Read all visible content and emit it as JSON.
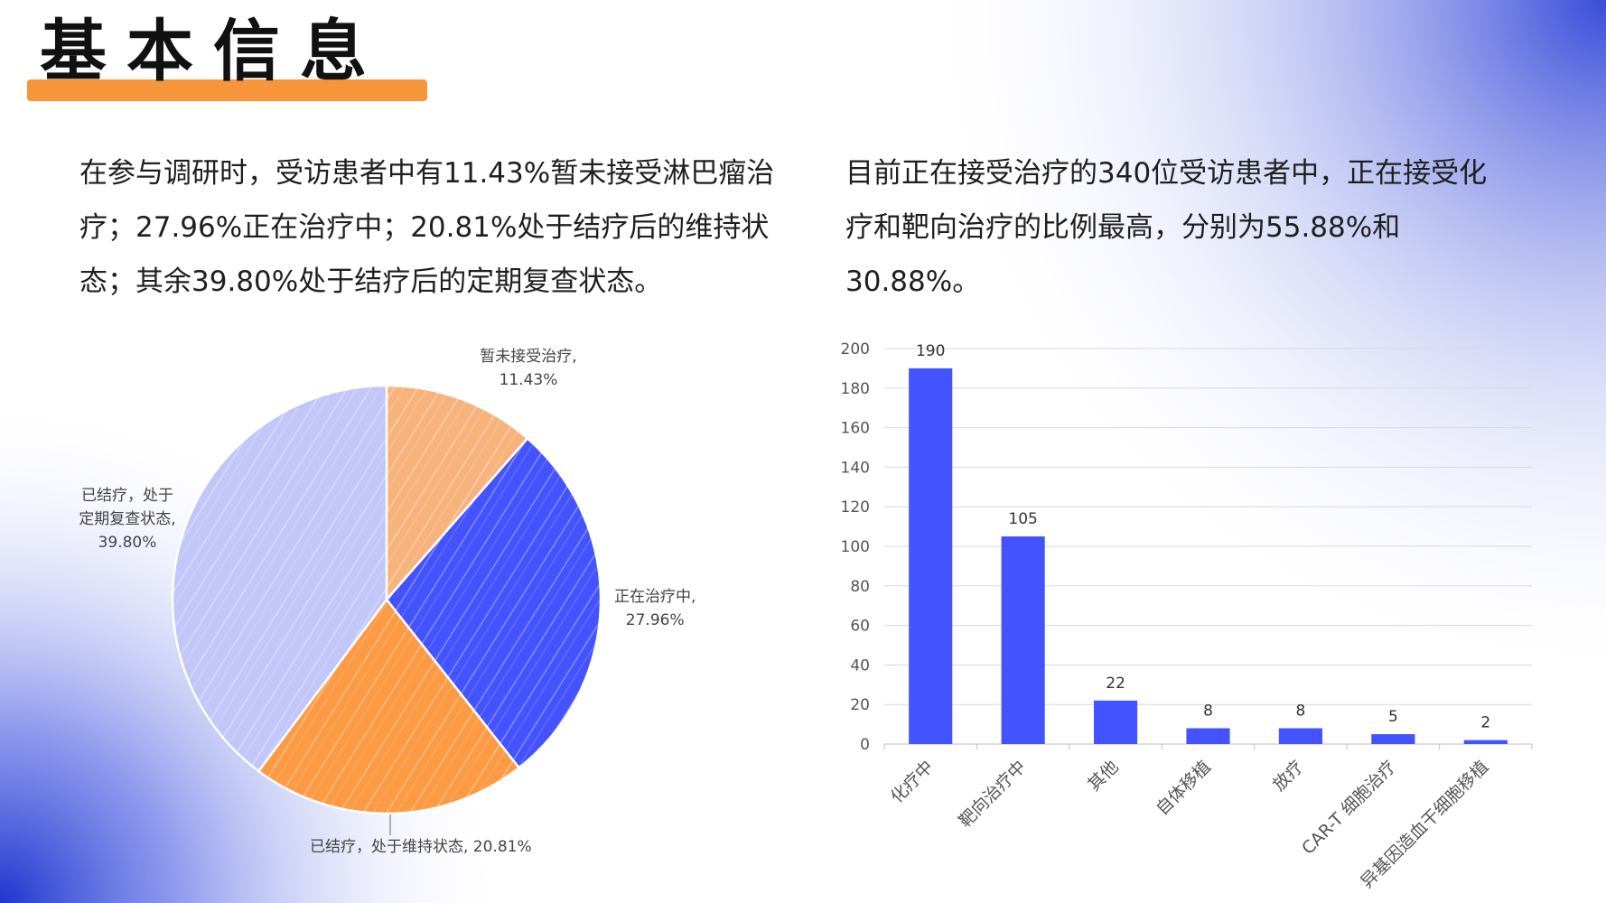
{
  "page": {
    "title": "基本信息",
    "paragraph_left": "在参与调研时，受访患者中有11.43%暂未接受淋巴瘤治疗；27.96%正在治疗中；20.81%处于结疗后的维持状态；其余39.80%处于结疗后的定期复查状态。",
    "paragraph_right": "目前正在接受治疗的340位受访患者中，正在接受化疗和靶向治疗的比例最高，分别为55.88%和30.88%。",
    "accent_color": "#f7953b",
    "brand_blue": "#4353ff"
  },
  "chart_data": [
    {
      "type": "pie",
      "slices": [
        {
          "label": "暂未接受治疗",
          "value": 11.43,
          "display": "11.43%",
          "color": "#f7b37c",
          "label_lines": [
            "暂未接受治疗,",
            "11.43%"
          ]
        },
        {
          "label": "正在治疗中",
          "value": 27.96,
          "display": "27.96%",
          "color": "#4353ff",
          "label_lines": [
            "正在治疗中,",
            "27.96%"
          ]
        },
        {
          "label": "已结疗，处于维持状态",
          "value": 20.81,
          "display": "20.81%",
          "color": "#fd9b45",
          "label_lines": [
            "已结疗，处于维持状态, 20.81%"
          ]
        },
        {
          "label": "已结疗，处于定期复查状态",
          "value": 39.8,
          "display": "39.80%",
          "color": "#c3c6f9",
          "label_lines": [
            "已结疗，处于",
            "定期复查状态,",
            "39.80%"
          ]
        }
      ]
    },
    {
      "type": "bar",
      "categories": [
        "化疗中",
        "靶向治疗中",
        "其他",
        "自体移植",
        "放疗",
        "CAR-T 细胞治疗",
        "异基因造血干细胞移植"
      ],
      "values": [
        190,
        105,
        22,
        8,
        8,
        5,
        2
      ],
      "ylim": [
        0,
        200
      ],
      "yticks": [
        "0",
        "20",
        "40",
        "60",
        "80",
        "100",
        "120",
        "140",
        "160",
        "180",
        "200"
      ],
      "grid": true,
      "bar_color": "#4353ff"
    }
  ]
}
